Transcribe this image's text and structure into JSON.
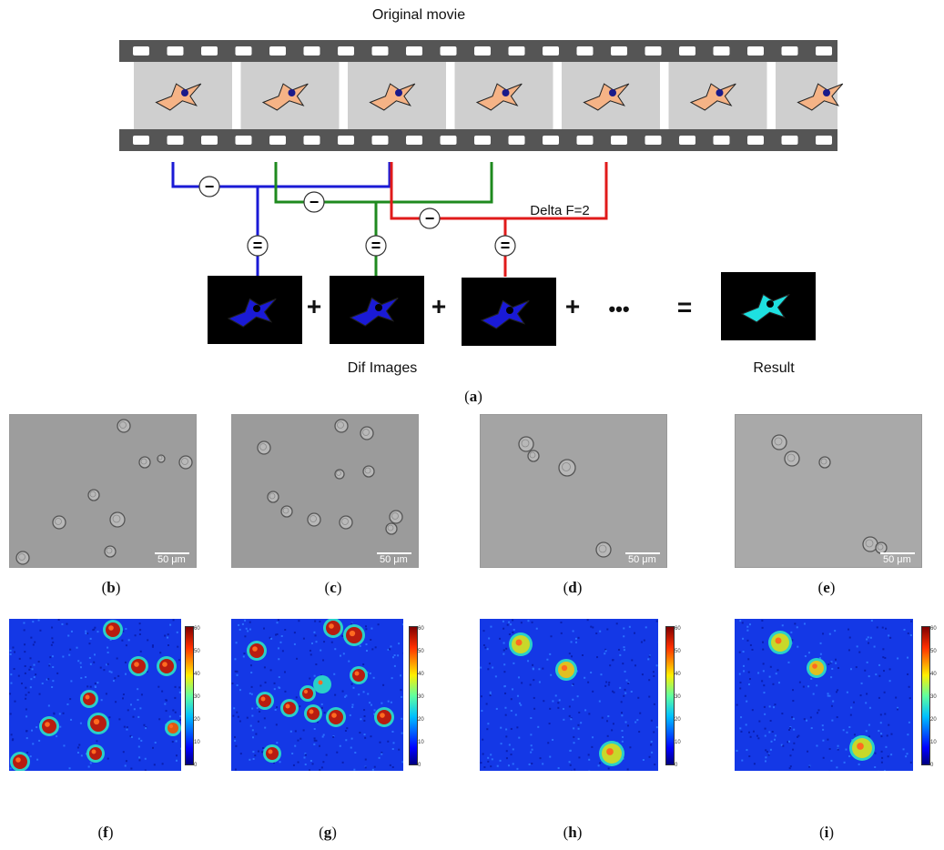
{
  "top": {
    "title": "Original movie",
    "delta_label": "Delta F=2",
    "minus_symbol": "−",
    "equals_symbol": "=",
    "plus_symbol": "+",
    "ellipsis": "•••",
    "result_equals": "=",
    "dif_label": "Dif Images",
    "result_label": "Result",
    "colors": {
      "blue": "#1a1ad6",
      "green": "#1e8a1e",
      "red": "#e01a1a",
      "cell": "#f5b386",
      "result_cell": "#1ee0e0",
      "film": "#555555",
      "frame_bg": "#cfcfcf"
    }
  },
  "panels": {
    "a": "a",
    "b": "b",
    "c": "c",
    "d": "d",
    "e": "e",
    "f": "f",
    "g": "g",
    "h": "h",
    "i": "i"
  },
  "scale_bar": "50 μm",
  "colorbar_ticks": [
    "60",
    "50",
    "40",
    "30",
    "20",
    "10",
    "0"
  ]
}
